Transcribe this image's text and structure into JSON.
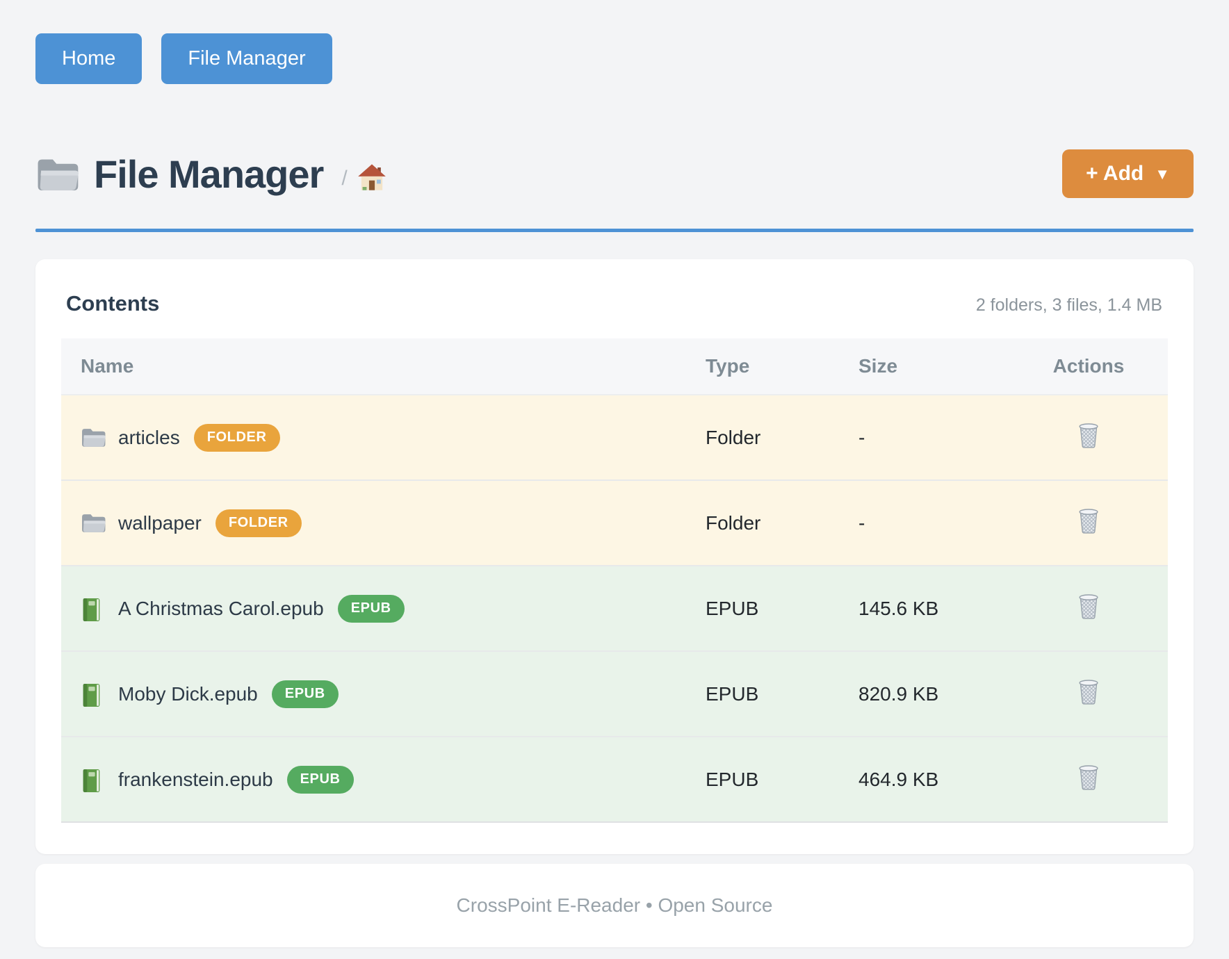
{
  "nav": {
    "buttons": [
      {
        "label": "Home"
      },
      {
        "label": "File Manager"
      }
    ]
  },
  "header": {
    "title": "File Manager",
    "title_icon": "folder-icon",
    "breadcrumb_separator": "/",
    "breadcrumb_home_icon": "house-icon",
    "add_button": {
      "label": "+ Add",
      "caret": "▼"
    }
  },
  "contents": {
    "heading": "Contents",
    "summary": "2 folders, 3 files, 1.4 MB",
    "table": {
      "columns": [
        "Name",
        "Type",
        "Size",
        "Actions"
      ],
      "rows": [
        {
          "icon": "folder-icon",
          "name": "articles",
          "badge": "FOLDER",
          "badge_style": "folder",
          "type": "Folder",
          "size": "-",
          "kind": "folder",
          "action_icon": "trash-icon"
        },
        {
          "icon": "folder-icon",
          "name": "wallpaper",
          "badge": "FOLDER",
          "badge_style": "folder",
          "type": "Folder",
          "size": "-",
          "kind": "folder",
          "action_icon": "trash-icon"
        },
        {
          "icon": "book-icon",
          "name": "A Christmas Carol.epub",
          "badge": "EPUB",
          "badge_style": "epub",
          "type": "EPUB",
          "size": "145.6 KB",
          "kind": "epub",
          "action_icon": "trash-icon"
        },
        {
          "icon": "book-icon",
          "name": "Moby Dick.epub",
          "badge": "EPUB",
          "badge_style": "epub",
          "type": "EPUB",
          "size": "820.9 KB",
          "kind": "epub",
          "action_icon": "trash-icon"
        },
        {
          "icon": "book-icon",
          "name": "frankenstein.epub",
          "badge": "EPUB",
          "badge_style": "epub",
          "type": "EPUB",
          "size": "464.9 KB",
          "kind": "epub",
          "action_icon": "trash-icon"
        }
      ]
    }
  },
  "footer": {
    "text": "CrossPoint E-Reader • Open Source"
  },
  "colors": {
    "accent_blue": "#4d92d5",
    "add_orange": "#dd8c3e",
    "badge_orange": "#e9a43c",
    "badge_green": "#55ab60",
    "folder_row_bg": "#fdf6e4",
    "epub_row_bg": "#e9f3ea",
    "title_text": "#2d3e50",
    "muted_text": "#8b949b"
  }
}
